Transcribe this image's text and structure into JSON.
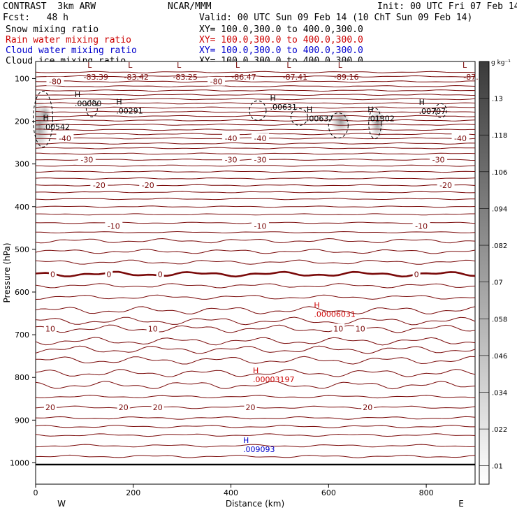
{
  "header": {
    "title": "CONTRAST  3km ARW",
    "center": "NCAR/MMM",
    "init": "Init: 00 UTC Fri 07 Feb 14",
    "fcst": "Fcst:   48 h",
    "valid": "Valid: 00 UTC Sun 09 Feb 14 (10 ChT Sun 09 Feb 14)",
    "fields": [
      {
        "label": "Snow mixing ratio",
        "xy": "XY= 100.0,300.0 to 400.0,300.0",
        "color": "#000000"
      },
      {
        "label": "Rain water mixing ratio",
        "xy": "XY= 100.0,300.0 to 400.0,300.0",
        "color": "#cc0000"
      },
      {
        "label": "Cloud water mixing ratio",
        "xy": "XY= 100.0,300.0 to 400.0,300.0",
        "color": "#0000cc"
      },
      {
        "label": "Cloud ice mixing ratio",
        "xy": "XY= 100.0,300.0 to 400.0,300.0",
        "color": "#000000"
      }
    ]
  },
  "chart_data": {
    "type": "contour",
    "xlabel": "Distance (km)",
    "ylabel": "Pressure (hPa)",
    "xlim": [
      0,
      900
    ],
    "ylim": [
      1050,
      60
    ],
    "x_ticks": [
      "0",
      "200",
      "400",
      "600",
      "800"
    ],
    "x_tick_values": [
      0,
      200,
      400,
      600,
      800
    ],
    "y_ticks": [
      "100",
      "200",
      "300",
      "400",
      "500",
      "600",
      "700",
      "800",
      "900",
      "1000"
    ],
    "y_tick_values": [
      100,
      200,
      300,
      400,
      500,
      600,
      700,
      800,
      900,
      1000
    ],
    "west_label": "W",
    "east_label": "E",
    "colorbar": {
      "unit": "g kg⁻¹",
      "labels": [
        ".13",
        ".118",
        ".106",
        ".094",
        ".082",
        ".07",
        ".058",
        ".046",
        ".034",
        ".022",
        ".01"
      ],
      "values": [
        0.13,
        0.118,
        0.106,
        0.094,
        0.082,
        0.07,
        0.058,
        0.046,
        0.034,
        0.022,
        0.01
      ]
    },
    "temp_contours": [
      {
        "p": 107,
        "label": "-80",
        "xs": [
          40,
          370
        ]
      },
      {
        "p": 240,
        "label": "-40",
        "xs": [
          60,
          400,
          460,
          870
        ]
      },
      {
        "p": 290,
        "label": "-30",
        "xs": [
          105,
          400,
          460,
          825
        ]
      },
      {
        "p": 350,
        "label": "-20",
        "xs": [
          130,
          230,
          840
        ]
      },
      {
        "p": 445,
        "label": "-10",
        "xs": [
          160,
          460,
          790
        ]
      },
      {
        "p": 558,
        "label": "0",
        "xs": [
          35,
          150,
          255,
          780
        ]
      },
      {
        "p": 686,
        "label": "10",
        "xs": [
          30,
          240,
          620,
          665
        ]
      },
      {
        "p": 870,
        "label": "20",
        "xs": [
          30,
          180,
          250,
          440,
          680
        ]
      }
    ],
    "lows": [
      {
        "x": 112,
        "p": 80,
        "value": "-83.39"
      },
      {
        "x": 195,
        "p": 80,
        "value": "-83.42"
      },
      {
        "x": 295,
        "p": 80,
        "value": "-83.25"
      },
      {
        "x": 415,
        "p": 80,
        "value": "-86.47"
      },
      {
        "x": 520,
        "p": 80,
        "value": "-87.41"
      },
      {
        "x": 625,
        "p": 80,
        "value": "-89.16"
      },
      {
        "x": 880,
        "p": 80,
        "value": "-87."
      }
    ],
    "ice_highs": [
      {
        "x": 80,
        "p": 150,
        "value": ".00080"
      },
      {
        "x": 165,
        "p": 167,
        "value": ".00291"
      },
      {
        "x": 15,
        "p": 205,
        "value": ".00542"
      },
      {
        "x": 480,
        "p": 158,
        "value": ".00631"
      },
      {
        "x": 555,
        "p": 185,
        "value": ".00637"
      },
      {
        "x": 680,
        "p": 185,
        "value": ".01302"
      },
      {
        "x": 785,
        "p": 168,
        "value": ".00707"
      }
    ],
    "rain_highs": [
      {
        "x": 570,
        "p": 643,
        "value": ".00006031"
      },
      {
        "x": 445,
        "p": 796,
        "value": ".00003197"
      }
    ],
    "cloud_highs": [
      {
        "x": 425,
        "p": 960,
        "value": ".009093"
      }
    ]
  }
}
